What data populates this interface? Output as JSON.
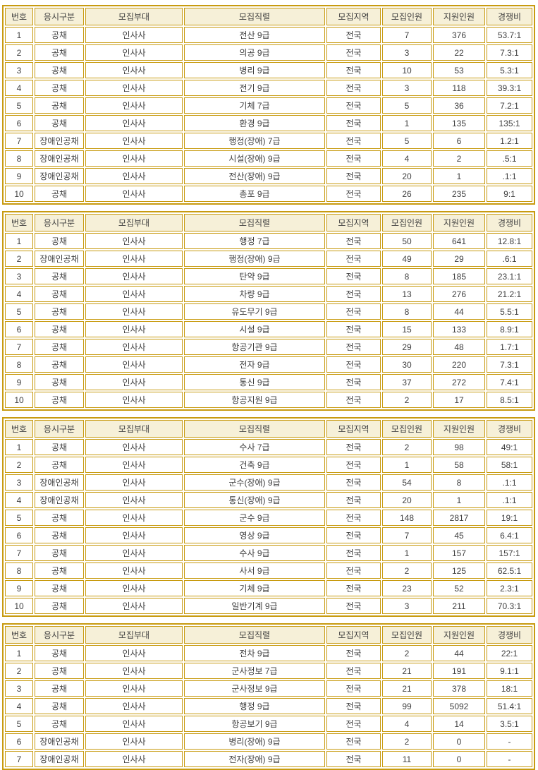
{
  "colors": {
    "table_border": "#C89B10",
    "header_background": "#F6F0D8",
    "cell_background": "#FFFFFF",
    "text": "#3F3F3F",
    "page_background": "#FFFFFF"
  },
  "columns": [
    "번호",
    "응시구분",
    "모집부대",
    "모집직렬",
    "모집지역",
    "모집인원",
    "지원인원",
    "경쟁비"
  ],
  "tables": [
    {
      "id": "table-1",
      "rows": [
        [
          "1",
          "공채",
          "인사사",
          "전산 9급",
          "전국",
          "7",
          "376",
          "53.7:1"
        ],
        [
          "2",
          "공채",
          "인사사",
          "의공 9급",
          "전국",
          "3",
          "22",
          "7.3:1"
        ],
        [
          "3",
          "공채",
          "인사사",
          "병리 9급",
          "전국",
          "10",
          "53",
          "5.3:1"
        ],
        [
          "4",
          "공채",
          "인사사",
          "전기 9급",
          "전국",
          "3",
          "118",
          "39.3:1"
        ],
        [
          "5",
          "공채",
          "인사사",
          "기체 7급",
          "전국",
          "5",
          "36",
          "7.2:1"
        ],
        [
          "6",
          "공채",
          "인사사",
          "환경 9급",
          "전국",
          "1",
          "135",
          "135:1"
        ],
        [
          "7",
          "장애인공채",
          "인사사",
          "행정(장애) 7급",
          "전국",
          "5",
          "6",
          "1.2:1"
        ],
        [
          "8",
          "장애인공채",
          "인사사",
          "시설(장애) 9급",
          "전국",
          "4",
          "2",
          ".5:1"
        ],
        [
          "9",
          "장애인공채",
          "인사사",
          "전산(장애) 9급",
          "전국",
          "20",
          "1",
          ".1:1"
        ],
        [
          "10",
          "공채",
          "인사사",
          "총포 9급",
          "전국",
          "26",
          "235",
          "9:1"
        ]
      ]
    },
    {
      "id": "table-2",
      "rows": [
        [
          "1",
          "공채",
          "인사사",
          "행정 7급",
          "전국",
          "50",
          "641",
          "12.8:1"
        ],
        [
          "2",
          "장애인공채",
          "인사사",
          "행정(장애) 9급",
          "전국",
          "49",
          "29",
          ".6:1"
        ],
        [
          "3",
          "공채",
          "인사사",
          "탄약 9급",
          "전국",
          "8",
          "185",
          "23.1:1"
        ],
        [
          "4",
          "공채",
          "인사사",
          "차량 9급",
          "전국",
          "13",
          "276",
          "21.2:1"
        ],
        [
          "5",
          "공채",
          "인사사",
          "유도무기 9급",
          "전국",
          "8",
          "44",
          "5.5:1"
        ],
        [
          "6",
          "공채",
          "인사사",
          "시설 9급",
          "전국",
          "15",
          "133",
          "8.9:1"
        ],
        [
          "7",
          "공채",
          "인사사",
          "항공기관 9급",
          "전국",
          "29",
          "48",
          "1.7:1"
        ],
        [
          "8",
          "공채",
          "인사사",
          "전자 9급",
          "전국",
          "30",
          "220",
          "7.3:1"
        ],
        [
          "9",
          "공채",
          "인사사",
          "통신 9급",
          "전국",
          "37",
          "272",
          "7.4:1"
        ],
        [
          "10",
          "공채",
          "인사사",
          "항공지원 9급",
          "전국",
          "2",
          "17",
          "8.5:1"
        ]
      ]
    },
    {
      "id": "table-3",
      "rows": [
        [
          "1",
          "공채",
          "인사사",
          "수사 7급",
          "전국",
          "2",
          "98",
          "49:1"
        ],
        [
          "2",
          "공채",
          "인사사",
          "건축 9급",
          "전국",
          "1",
          "58",
          "58:1"
        ],
        [
          "3",
          "장애인공채",
          "인사사",
          "군수(장애) 9급",
          "전국",
          "54",
          "8",
          ".1:1"
        ],
        [
          "4",
          "장애인공채",
          "인사사",
          "통신(장애) 9급",
          "전국",
          "20",
          "1",
          ".1:1"
        ],
        [
          "5",
          "공채",
          "인사사",
          "군수 9급",
          "전국",
          "148",
          "2817",
          "19:1"
        ],
        [
          "6",
          "공채",
          "인사사",
          "영상 9급",
          "전국",
          "7",
          "45",
          "6.4:1"
        ],
        [
          "7",
          "공채",
          "인사사",
          "수사 9급",
          "전국",
          "1",
          "157",
          "157:1"
        ],
        [
          "8",
          "공채",
          "인사사",
          "사서 9급",
          "전국",
          "2",
          "125",
          "62.5:1"
        ],
        [
          "9",
          "공채",
          "인사사",
          "기체 9급",
          "전국",
          "23",
          "52",
          "2.3:1"
        ],
        [
          "10",
          "공채",
          "인사사",
          "일반기계 9급",
          "전국",
          "3",
          "211",
          "70.3:1"
        ]
      ]
    },
    {
      "id": "table-4",
      "rows": [
        [
          "1",
          "공채",
          "인사사",
          "전차 9급",
          "전국",
          "2",
          "44",
          "22:1"
        ],
        [
          "2",
          "공채",
          "인사사",
          "군사정보 7급",
          "전국",
          "21",
          "191",
          "9.1:1"
        ],
        [
          "3",
          "공채",
          "인사사",
          "군사정보 9급",
          "전국",
          "21",
          "378",
          "18:1"
        ],
        [
          "4",
          "공채",
          "인사사",
          "행정 9급",
          "전국",
          "99",
          "5092",
          "51.4:1"
        ],
        [
          "5",
          "공채",
          "인사사",
          "항공보기 9급",
          "전국",
          "4",
          "14",
          "3.5:1"
        ],
        [
          "6",
          "장애인공채",
          "인사사",
          "병리(장애) 9급",
          "전국",
          "2",
          "0",
          "-"
        ],
        [
          "7",
          "장애인공채",
          "인사사",
          "전자(장애) 9급",
          "전국",
          "11",
          "0",
          "-"
        ]
      ]
    }
  ]
}
